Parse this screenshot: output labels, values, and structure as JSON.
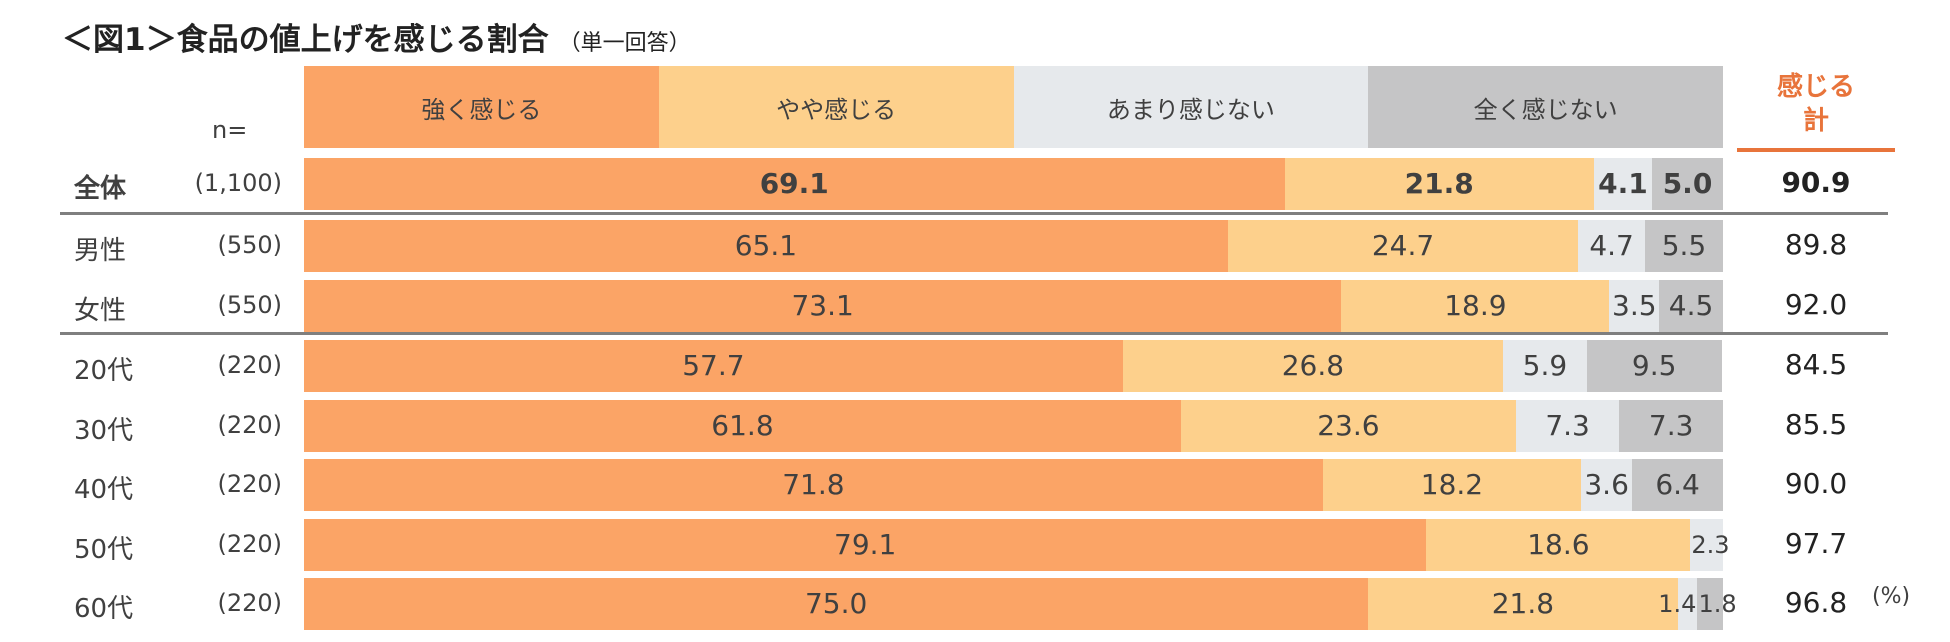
{
  "title": "＜図1＞食品の値上げを感じる割合",
  "subtitle": "（単一回答）",
  "n_label": "n=",
  "total_header": [
    "感じる",
    "計"
  ],
  "unit": "(%)",
  "colors": {
    "strong": "#FBA466",
    "somewhat": "#FDD08C",
    "not_much": "#E6E9EC",
    "not_at_all": "#C5C5C6",
    "accent": "#E8743B"
  },
  "chart_data": {
    "type": "bar",
    "orientation": "horizontal-stacked-100",
    "title": "＜図1＞食品の値上げを感じる割合",
    "legend": [
      "強く感じる",
      "やや感じる",
      "あまり感じない",
      "全く感じない"
    ],
    "legend_placement": "top",
    "xlim": [
      0,
      100
    ],
    "unit": "%",
    "rows": [
      {
        "label": "全体",
        "n": "(1,100)",
        "values": [
          69.1,
          21.8,
          4.1,
          5.0
        ],
        "total": "90.9",
        "bold": true
      },
      {
        "label": "男性",
        "n": "(550)",
        "values": [
          65.1,
          24.7,
          4.7,
          5.5
        ],
        "total": "89.8"
      },
      {
        "label": "女性",
        "n": "(550)",
        "values": [
          73.1,
          18.9,
          3.5,
          4.5
        ],
        "total": "92.0"
      },
      {
        "label": "20代",
        "n": "(220)",
        "values": [
          57.7,
          26.8,
          5.9,
          9.5
        ],
        "total": "84.5"
      },
      {
        "label": "30代",
        "n": "(220)",
        "values": [
          61.8,
          23.6,
          7.3,
          7.3
        ],
        "total": "85.5"
      },
      {
        "label": "40代",
        "n": "(220)",
        "values": [
          71.8,
          18.2,
          3.6,
          6.4
        ],
        "total": "90.0"
      },
      {
        "label": "50代",
        "n": "(220)",
        "values": [
          79.1,
          18.6,
          2.3,
          null
        ],
        "total": "97.7"
      },
      {
        "label": "60代",
        "n": "(220)",
        "values": [
          75.0,
          21.8,
          1.4,
          1.8
        ],
        "total": "96.8"
      }
    ]
  }
}
